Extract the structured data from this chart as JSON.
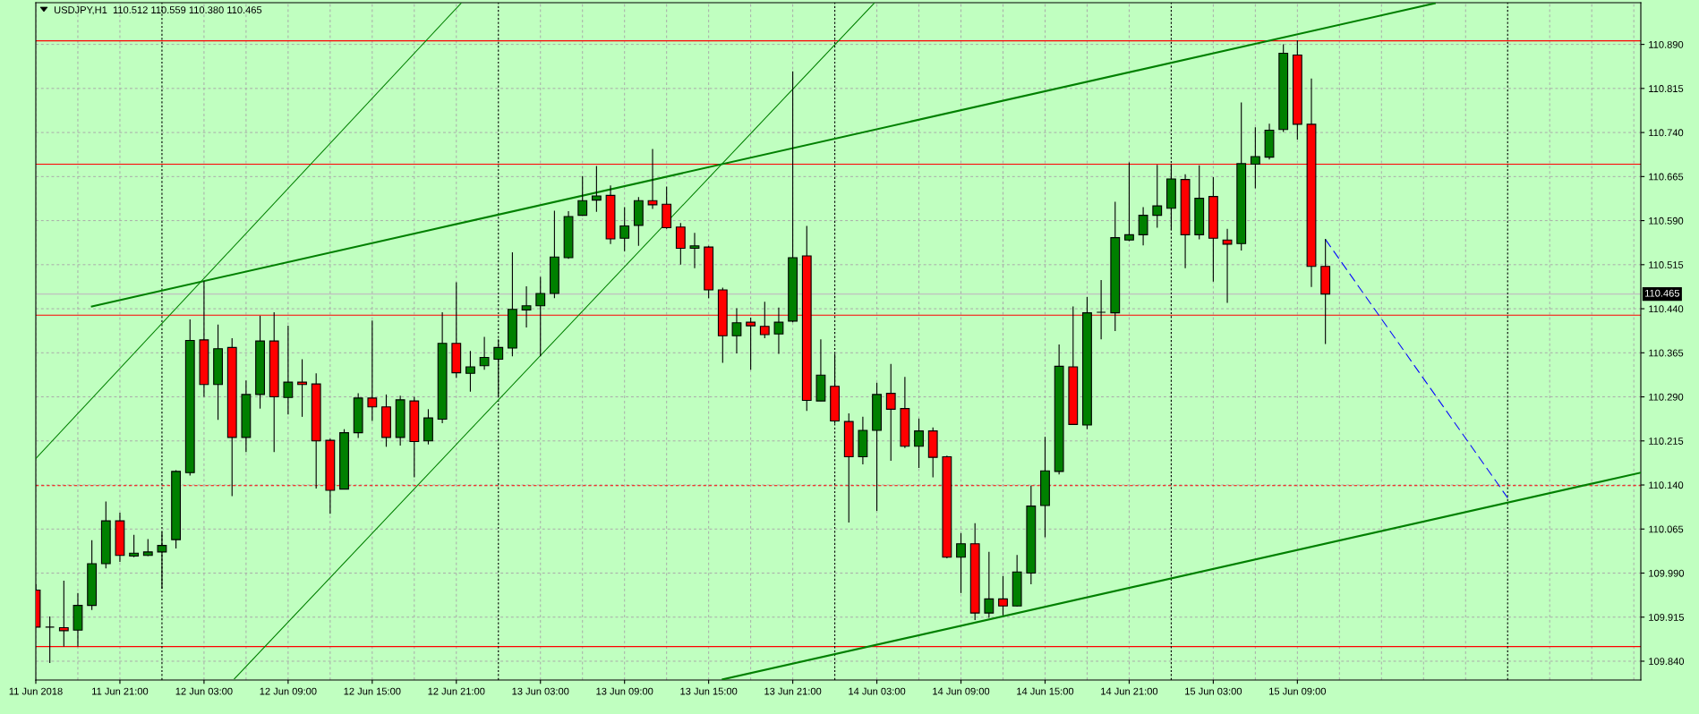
{
  "chart_data": {
    "type": "candlestick",
    "title": "USDJPY,H1  110.512 110.559 110.380 110.465",
    "x": [
      "2018-06-11T15:00",
      "2018-06-11T16:00",
      "2018-06-11T17:00",
      "2018-06-11T18:00",
      "2018-06-11T19:00",
      "2018-06-11T20:00",
      "2018-06-11T21:00",
      "2018-06-11T22:00",
      "2018-06-11T23:00",
      "2018-06-12T00:00",
      "2018-06-12T01:00",
      "2018-06-12T02:00",
      "2018-06-12T03:00",
      "2018-06-12T04:00",
      "2018-06-12T05:00",
      "2018-06-12T06:00",
      "2018-06-12T07:00",
      "2018-06-12T08:00",
      "2018-06-12T09:00",
      "2018-06-12T10:00",
      "2018-06-12T11:00",
      "2018-06-12T12:00",
      "2018-06-12T13:00",
      "2018-06-12T14:00",
      "2018-06-12T15:00",
      "2018-06-12T16:00",
      "2018-06-12T17:00",
      "2018-06-12T18:00",
      "2018-06-12T19:00",
      "2018-06-12T20:00",
      "2018-06-12T21:00",
      "2018-06-12T22:00",
      "2018-06-12T23:00",
      "2018-06-13T00:00",
      "2018-06-13T01:00",
      "2018-06-13T02:00",
      "2018-06-13T03:00",
      "2018-06-13T04:00",
      "2018-06-13T05:00",
      "2018-06-13T06:00",
      "2018-06-13T07:00",
      "2018-06-13T08:00",
      "2018-06-13T09:00",
      "2018-06-13T10:00",
      "2018-06-13T11:00",
      "2018-06-13T12:00",
      "2018-06-13T13:00",
      "2018-06-13T14:00",
      "2018-06-13T15:00",
      "2018-06-13T16:00",
      "2018-06-13T17:00",
      "2018-06-13T18:00",
      "2018-06-13T19:00",
      "2018-06-13T20:00",
      "2018-06-13T21:00",
      "2018-06-13T22:00",
      "2018-06-13T23:00",
      "2018-06-14T00:00",
      "2018-06-14T01:00",
      "2018-06-14T02:00",
      "2018-06-14T03:00",
      "2018-06-14T04:00",
      "2018-06-14T05:00",
      "2018-06-14T06:00",
      "2018-06-14T07:00",
      "2018-06-14T08:00",
      "2018-06-14T09:00",
      "2018-06-14T10:00",
      "2018-06-14T11:00",
      "2018-06-14T12:00",
      "2018-06-14T13:00",
      "2018-06-14T14:00",
      "2018-06-14T15:00",
      "2018-06-14T16:00",
      "2018-06-14T17:00",
      "2018-06-14T18:00",
      "2018-06-14T19:00",
      "2018-06-14T20:00",
      "2018-06-14T21:00",
      "2018-06-14T22:00",
      "2018-06-14T23:00",
      "2018-06-15T00:00",
      "2018-06-15T01:00",
      "2018-06-15T02:00",
      "2018-06-15T03:00",
      "2018-06-15T04:00",
      "2018-06-15T05:00",
      "2018-06-15T06:00",
      "2018-06-15T07:00",
      "2018-06-15T08:00",
      "2018-06-15T09:00",
      "2018-06-15T10:00",
      "2018-06-15T11:00"
    ],
    "ohlc": [
      [
        109.961,
        109.971,
        109.898,
        109.898
      ],
      [
        109.898,
        109.916,
        109.837,
        109.898
      ],
      [
        109.897,
        109.977,
        109.865,
        109.892
      ],
      [
        109.893,
        109.956,
        109.865,
        109.935
      ],
      [
        109.935,
        110.046,
        109.927,
        110.006
      ],
      [
        110.006,
        110.112,
        109.998,
        110.079
      ],
      [
        110.079,
        110.093,
        110.009,
        110.02
      ],
      [
        110.019,
        110.055,
        110.017,
        110.024
      ],
      [
        110.02,
        110.048,
        110.019,
        110.026
      ],
      [
        110.026,
        110.06,
        109.963,
        110.037
      ],
      [
        110.047,
        110.165,
        110.032,
        110.163
      ],
      [
        110.161,
        110.422,
        110.156,
        110.386
      ],
      [
        110.387,
        110.487,
        110.29,
        110.311
      ],
      [
        110.311,
        110.413,
        110.251,
        110.372
      ],
      [
        110.374,
        110.39,
        110.121,
        110.221
      ],
      [
        110.221,
        110.318,
        110.196,
        110.294
      ],
      [
        110.294,
        110.428,
        110.27,
        110.385
      ],
      [
        110.385,
        110.434,
        110.196,
        110.29
      ],
      [
        110.289,
        110.411,
        110.26,
        110.315
      ],
      [
        110.315,
        110.354,
        110.256,
        110.311
      ],
      [
        110.312,
        110.33,
        110.134,
        110.215
      ],
      [
        110.216,
        110.219,
        110.091,
        110.131
      ],
      [
        110.133,
        110.235,
        110.133,
        110.229
      ],
      [
        110.229,
        110.296,
        110.22,
        110.288
      ],
      [
        110.288,
        110.42,
        110.249,
        110.273
      ],
      [
        110.273,
        110.294,
        110.205,
        110.221
      ],
      [
        110.221,
        110.292,
        110.207,
        110.285
      ],
      [
        110.283,
        110.29,
        110.153,
        110.214
      ],
      [
        110.215,
        110.269,
        110.209,
        110.254
      ],
      [
        110.252,
        110.434,
        110.245,
        110.381
      ],
      [
        110.381,
        110.485,
        110.322,
        110.331
      ],
      [
        110.33,
        110.368,
        110.299,
        110.341
      ],
      [
        110.343,
        110.392,
        110.336,
        110.357
      ],
      [
        110.354,
        110.388,
        110.29,
        110.374
      ],
      [
        110.373,
        110.536,
        110.359,
        110.439
      ],
      [
        110.438,
        110.478,
        110.408,
        110.445
      ],
      [
        110.445,
        110.494,
        110.359,
        110.466
      ],
      [
        110.466,
        110.607,
        110.458,
        110.528
      ],
      [
        110.527,
        110.606,
        110.525,
        110.597
      ],
      [
        110.599,
        110.666,
        110.598,
        110.624
      ],
      [
        110.625,
        110.683,
        110.605,
        110.632
      ],
      [
        110.633,
        110.65,
        110.55,
        110.559
      ],
      [
        110.56,
        110.613,
        110.538,
        110.581
      ],
      [
        110.582,
        110.63,
        110.547,
        110.624
      ],
      [
        110.624,
        110.712,
        110.61,
        110.617
      ],
      [
        110.618,
        110.648,
        110.576,
        110.578
      ],
      [
        110.579,
        110.586,
        110.515,
        110.543
      ],
      [
        110.543,
        110.569,
        110.509,
        110.547
      ],
      [
        110.545,
        110.547,
        110.458,
        110.472
      ],
      [
        110.472,
        110.476,
        110.348,
        110.394
      ],
      [
        110.394,
        110.441,
        110.364,
        110.416
      ],
      [
        110.417,
        110.425,
        110.336,
        110.411
      ],
      [
        110.41,
        110.452,
        110.39,
        110.396
      ],
      [
        110.397,
        110.442,
        110.363,
        110.417
      ],
      [
        110.419,
        110.844,
        110.417,
        110.527
      ],
      [
        110.53,
        110.581,
        110.266,
        110.284
      ],
      [
        110.283,
        110.388,
        110.283,
        110.327
      ],
      [
        110.308,
        110.363,
        110.245,
        110.249
      ],
      [
        110.248,
        110.262,
        110.076,
        110.188
      ],
      [
        110.188,
        110.256,
        110.175,
        110.233
      ],
      [
        110.233,
        110.314,
        110.096,
        110.294
      ],
      [
        110.296,
        110.346,
        110.181,
        110.269
      ],
      [
        110.27,
        110.324,
        110.203,
        110.206
      ],
      [
        110.206,
        110.253,
        110.169,
        110.232
      ],
      [
        110.232,
        110.238,
        110.153,
        110.187
      ],
      [
        110.188,
        110.19,
        110.015,
        110.017
      ],
      [
        110.017,
        110.058,
        109.956,
        110.04
      ],
      [
        110.04,
        110.075,
        109.91,
        109.922
      ],
      [
        109.922,
        110.026,
        109.914,
        109.946
      ],
      [
        109.946,
        109.985,
        109.918,
        109.934
      ],
      [
        109.934,
        110.021,
        109.933,
        109.992
      ],
      [
        109.99,
        110.139,
        109.971,
        110.104
      ],
      [
        110.105,
        110.222,
        110.051,
        110.164
      ],
      [
        110.163,
        110.379,
        110.158,
        110.342
      ],
      [
        110.341,
        110.444,
        110.243,
        110.243
      ],
      [
        110.242,
        110.46,
        110.235,
        110.433
      ],
      [
        110.434,
        110.489,
        110.388,
        110.434
      ],
      [
        110.433,
        110.622,
        110.402,
        110.561
      ],
      [
        110.557,
        110.689,
        110.555,
        110.566
      ],
      [
        110.566,
        110.613,
        110.548,
        110.599
      ],
      [
        110.599,
        110.685,
        110.578,
        110.615
      ],
      [
        110.611,
        110.686,
        110.574,
        110.661
      ],
      [
        110.66,
        110.669,
        110.509,
        110.566
      ],
      [
        110.566,
        110.684,
        110.558,
        110.628
      ],
      [
        110.631,
        110.664,
        110.486,
        110.56
      ],
      [
        110.557,
        110.576,
        110.45,
        110.55
      ],
      [
        110.551,
        110.791,
        110.539,
        110.687
      ],
      [
        110.686,
        110.749,
        110.645,
        110.699
      ],
      [
        110.698,
        110.755,
        110.694,
        110.744
      ],
      [
        110.745,
        110.89,
        110.741,
        110.875
      ],
      [
        110.872,
        110.897,
        110.728,
        110.754
      ],
      [
        110.754,
        110.832,
        110.477,
        110.512
      ],
      [
        110.512,
        110.559,
        110.38,
        110.465
      ]
    ],
    "colors": [
      "#ff0000",
      "#000000",
      "#ff0000",
      "#008000",
      "#008000",
      "#008000",
      "#ff0000",
      "#008000",
      "#008000",
      "#008000",
      "#008000",
      "#008000",
      "#ff0000",
      "#008000",
      "#ff0000",
      "#008000",
      "#008000",
      "#ff0000",
      "#008000",
      "#ff0000",
      "#ff0000",
      "#ff0000",
      "#008000",
      "#008000",
      "#ff0000",
      "#ff0000",
      "#008000",
      "#ff0000",
      "#008000",
      "#008000",
      "#ff0000",
      "#008000",
      "#008000",
      "#008000",
      "#008000",
      "#008000",
      "#008000",
      "#008000",
      "#008000",
      "#008000",
      "#008000",
      "#ff0000",
      "#008000",
      "#008000",
      "#ff0000",
      "#ff0000",
      "#ff0000",
      "#008000",
      "#ff0000",
      "#ff0000",
      "#008000",
      "#ff0000",
      "#ff0000",
      "#008000",
      "#008000",
      "#ff0000",
      "#008000",
      "#ff0000",
      "#ff0000",
      "#008000",
      "#008000",
      "#ff0000",
      "#ff0000",
      "#008000",
      "#ff0000",
      "#ff0000",
      "#008000",
      "#ff0000",
      "#008000",
      "#ff0000",
      "#008000",
      "#008000",
      "#008000",
      "#008000",
      "#ff0000",
      "#008000",
      "#000000",
      "#008000",
      "#008000",
      "#008000",
      "#008000",
      "#008000",
      "#ff0000",
      "#008000",
      "#ff0000",
      "#ff0000",
      "#008000",
      "#008000",
      "#008000",
      "#008000",
      "#ff0000",
      "#ff0000",
      "#ff0000"
    ],
    "series": [
      {
        "type": "line",
        "x": [
          "2018-06-11T19:00",
          "2018-06-15T18:48"
        ],
        "values": [
          110.444,
          110.96
        ],
        "color": "#008000"
      },
      {
        "type": "line",
        "x": [
          "2018-06-13T16:00",
          "2018-06-16T09:30"
        ],
        "values": [
          109.809,
          110.161
        ],
        "color": "#008000"
      },
      {
        "type": "line",
        "x": [
          "2018-06-11T15:00",
          "2018-06-12T21:20"
        ],
        "values": [
          110.185,
          110.96
        ],
        "color": "#008000"
      },
      {
        "type": "line",
        "x": [
          "2018-06-12T05:10",
          "2018-06-14T02:48"
        ],
        "values": [
          109.81,
          110.96
        ],
        "color": "#008000"
      },
      {
        "type": "line",
        "x": [
          "2018-06-15T11:00",
          "2018-06-16T00:00"
        ],
        "values": [
          110.558,
          110.118
        ],
        "color": "#0000ff",
        "line_style": "dashed"
      }
    ],
    "ref_lines": [
      {
        "axis": "y",
        "value": 110.896,
        "color": "#ff0000"
      },
      {
        "axis": "y",
        "value": 110.686,
        "color": "#ff0000"
      },
      {
        "axis": "y",
        "value": 110.429,
        "color": "#ff0000"
      },
      {
        "axis": "y",
        "value": 110.139,
        "color": "#ff0000",
        "line_style": "dashed"
      },
      {
        "axis": "y",
        "value": 109.865,
        "color": "#ff0000"
      },
      {
        "axis": "y",
        "value": 110.465,
        "color": "#c0c0c0",
        "label": "110.465"
      },
      {
        "axis": "x",
        "value": "2018-06-12T00:00",
        "color": "#000000",
        "line_style": "dotted"
      },
      {
        "axis": "x",
        "value": "2018-06-13T00:00",
        "color": "#000000",
        "line_style": "dotted"
      },
      {
        "axis": "x",
        "value": "2018-06-14T00:00",
        "color": "#000000",
        "line_style": "dotted"
      },
      {
        "axis": "x",
        "value": "2018-06-15T00:00",
        "color": "#000000",
        "line_style": "dotted"
      },
      {
        "axis": "x",
        "value": "2018-06-16T00:00",
        "color": "#000000",
        "line_style": "dotted"
      }
    ],
    "xlim": [
      "2018-06-11T15:00",
      "2018-06-16T09:30"
    ],
    "ylim": [
      109.808,
      110.961
    ],
    "xticks": [
      {
        "value": "2018-06-11T15:00",
        "label": "11 Jun 2018"
      },
      {
        "value": "2018-06-11T18:00",
        "label": null
      },
      {
        "value": "2018-06-11T21:00",
        "label": "11 Jun 21:00"
      },
      {
        "value": "2018-06-12T03:00",
        "label": "12 Jun 03:00"
      },
      {
        "value": "2018-06-12T06:00",
        "label": null
      },
      {
        "value": "2018-06-12T09:00",
        "label": "12 Jun 09:00"
      },
      {
        "value": "2018-06-12T12:00",
        "label": null
      },
      {
        "value": "2018-06-12T15:00",
        "label": "12 Jun 15:00"
      },
      {
        "value": "2018-06-12T18:00",
        "label": null
      },
      {
        "value": "2018-06-12T21:00",
        "label": "12 Jun 21:00"
      },
      {
        "value": "2018-06-13T03:00",
        "label": "13 Jun 03:00"
      },
      {
        "value": "2018-06-13T06:00",
        "label": null
      },
      {
        "value": "2018-06-13T09:00",
        "label": "13 Jun 09:00"
      },
      {
        "value": "2018-06-13T12:00",
        "label": null
      },
      {
        "value": "2018-06-13T15:00",
        "label": "13 Jun 15:00"
      },
      {
        "value": "2018-06-13T18:00",
        "label": null
      },
      {
        "value": "2018-06-13T21:00",
        "label": "13 Jun 21:00"
      },
      {
        "value": "2018-06-14T03:00",
        "label": "14 Jun 03:00"
      },
      {
        "value": "2018-06-14T06:00",
        "label": null
      },
      {
        "value": "2018-06-14T09:00",
        "label": "14 Jun 09:00"
      },
      {
        "value": "2018-06-14T12:00",
        "label": null
      },
      {
        "value": "2018-06-14T15:00",
        "label": "14 Jun 15:00"
      },
      {
        "value": "2018-06-14T18:00",
        "label": null
      },
      {
        "value": "2018-06-14T21:00",
        "label": "14 Jun 21:00"
      },
      {
        "value": "2018-06-15T03:00",
        "label": "15 Jun 03:00"
      },
      {
        "value": "2018-06-15T06:00",
        "label": null
      },
      {
        "value": "2018-06-15T09:00",
        "label": "15 Jun 09:00"
      },
      {
        "value": "2018-06-15T12:00",
        "label": null
      },
      {
        "value": "2018-06-15T15:00",
        "label": null
      },
      {
        "value": "2018-06-15T18:00",
        "label": null
      },
      {
        "value": "2018-06-15T21:00",
        "label": null
      },
      {
        "value": "2018-06-16T03:00",
        "label": null
      },
      {
        "value": "2018-06-16T06:00",
        "label": null
      },
      {
        "value": "2018-06-16T09:00",
        "label": null
      }
    ],
    "yticks": [
      {
        "value": 109.84,
        "label": "109.840"
      },
      109.915,
      {
        "value": 109.99,
        "label": "109.990"
      },
      110.065,
      {
        "value": 110.14,
        "label": "110.140"
      },
      110.215,
      {
        "value": 110.29,
        "label": "110.290"
      },
      110.365,
      {
        "value": 110.44,
        "label": "110.440"
      },
      110.515,
      {
        "value": 110.59,
        "label": "110.590"
      },
      110.665,
      {
        "value": 110.74,
        "label": "110.740"
      },
      110.815,
      {
        "value": 110.89,
        "label": "110.890"
      }
    ],
    "grid": true
  }
}
